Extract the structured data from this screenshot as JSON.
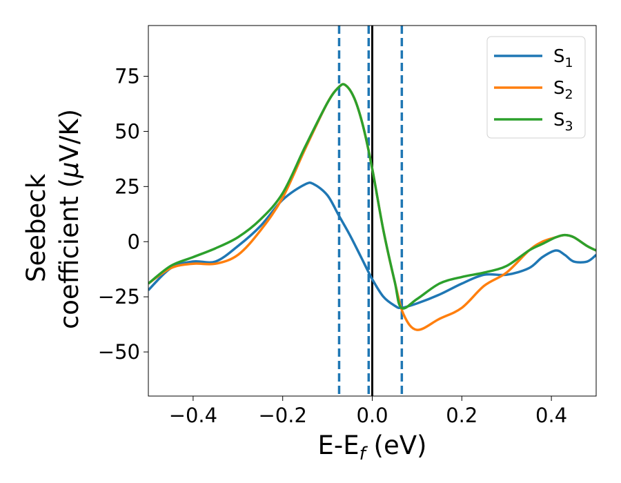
{
  "chart_data": {
    "type": "line",
    "title": "",
    "xlabel": {
      "text": "E-E",
      "sub": "f",
      "suffix": " (eV)"
    },
    "ylabel": {
      "line1": "Seebeck",
      "line2_prefix": "coefficient  (",
      "line2_mu": "μ",
      "line2_suffix": "V/K)"
    },
    "xlim": [
      -0.5,
      0.5
    ],
    "ylim": [
      -70,
      98
    ],
    "xticks": [
      -0.4,
      -0.2,
      0.0,
      0.2,
      0.4
    ],
    "xtick_labels": [
      "−0.4",
      "−0.2",
      "0.0",
      "0.2",
      "0.4"
    ],
    "yticks": [
      -50,
      -25,
      0,
      25,
      50,
      75
    ],
    "ytick_labels": [
      "−50",
      "−25",
      "0",
      "25",
      "50",
      "75"
    ],
    "grid": false,
    "legend": {
      "position": "top-right"
    },
    "vlines": [
      {
        "x": -0.074,
        "style": "dashed",
        "color": "#1f77b4"
      },
      {
        "x": -0.008,
        "style": "dashed",
        "color": "#1f77b4"
      },
      {
        "x": 0.0,
        "style": "solid",
        "color": "#000000"
      },
      {
        "x": 0.066,
        "style": "dashed",
        "color": "#1f77b4"
      }
    ],
    "series": [
      {
        "name": "S",
        "sub": "1",
        "color": "#1f77b4",
        "x": [
          -0.5,
          -0.45,
          -0.4,
          -0.35,
          -0.3,
          -0.25,
          -0.2,
          -0.15,
          -0.13,
          -0.1,
          -0.075,
          -0.05,
          -0.025,
          0.0,
          0.025,
          0.05,
          0.065,
          0.1,
          0.15,
          0.2,
          0.25,
          0.3,
          0.35,
          0.38,
          0.41,
          0.43,
          0.45,
          0.48,
          0.5
        ],
        "y": [
          -22,
          -12,
          -9,
          -9,
          -2,
          7,
          19,
          26,
          26,
          21,
          12,
          3,
          -7,
          -17,
          -25,
          -29,
          -30,
          -28,
          -24,
          -19,
          -15,
          -15,
          -12,
          -7,
          -4,
          -6,
          -9,
          -9,
          -6
        ]
      },
      {
        "name": "S",
        "sub": "2",
        "color": "#ff7f0e",
        "x": [
          -0.5,
          -0.45,
          -0.4,
          -0.35,
          -0.3,
          -0.25,
          -0.2,
          -0.15,
          -0.1,
          -0.075,
          -0.06,
          -0.04,
          -0.02,
          0.0,
          0.025,
          0.05,
          0.07,
          0.1,
          0.15,
          0.2,
          0.25,
          0.3,
          0.35,
          0.38,
          0.41,
          0.43,
          0.45,
          0.48,
          0.5
        ],
        "y": [
          -19,
          -12,
          -10,
          -10,
          -6,
          5,
          20,
          42,
          63,
          70,
          71,
          65,
          52,
          33,
          5,
          -18,
          -33,
          -40,
          -35,
          -30,
          -20,
          -14,
          -4,
          0,
          2,
          3,
          2,
          -2,
          -4
        ]
      },
      {
        "name": "S",
        "sub": "3",
        "color": "#2ca02c",
        "x": [
          -0.5,
          -0.45,
          -0.4,
          -0.35,
          -0.3,
          -0.25,
          -0.2,
          -0.15,
          -0.1,
          -0.075,
          -0.06,
          -0.04,
          -0.02,
          0.0,
          0.025,
          0.05,
          0.065,
          0.1,
          0.15,
          0.2,
          0.25,
          0.3,
          0.35,
          0.38,
          0.41,
          0.43,
          0.45,
          0.48,
          0.5
        ],
        "y": [
          -19,
          -11,
          -7,
          -3,
          2,
          10,
          22,
          43,
          63,
          70,
          71,
          65,
          52,
          33,
          5,
          -18,
          -30,
          -26,
          -19,
          -16,
          -14,
          -11,
          -4,
          -1,
          2,
          3,
          2,
          -2,
          -4
        ]
      }
    ]
  }
}
